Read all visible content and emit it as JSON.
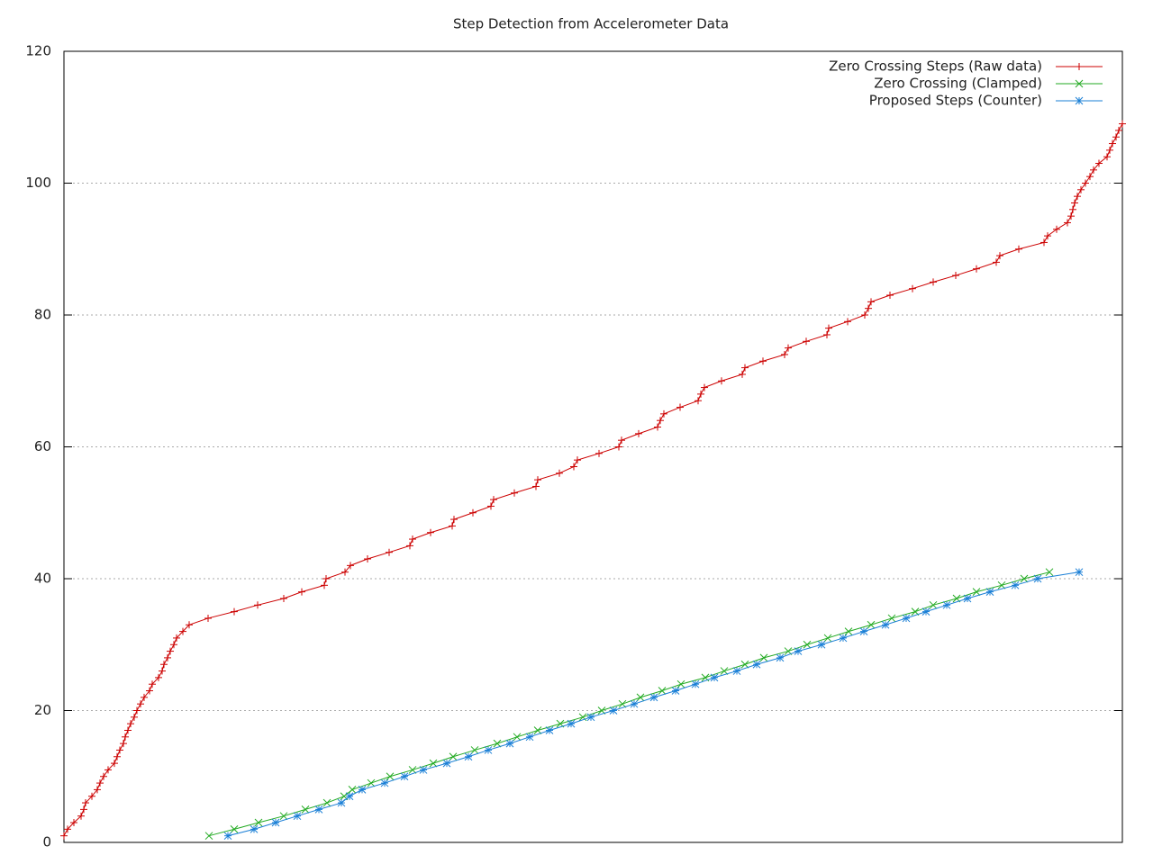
{
  "chart_data": {
    "type": "line",
    "title": "Step Detection from Accelerometer Data",
    "xlim": [
      0,
      1175
    ],
    "ylim": [
      0,
      120
    ],
    "yticks": [
      0,
      20,
      40,
      60,
      80,
      100,
      120
    ],
    "grid": true,
    "legend": "top-right",
    "series": [
      {
        "name": "Zero Crossing Steps (Raw data)",
        "color": "#cc0000",
        "marker": "plus",
        "x": [
          0,
          4,
          11,
          19,
          22,
          24,
          31,
          37,
          40,
          44,
          49,
          56,
          59,
          62,
          66,
          68,
          71,
          74,
          78,
          81,
          85,
          89,
          95,
          98,
          105,
          109,
          111,
          115,
          118,
          122,
          125,
          132,
          139,
          160,
          189,
          215,
          244,
          264,
          289,
          291,
          312,
          318,
          337,
          361,
          384,
          387,
          407,
          431,
          433,
          454,
          474,
          477,
          500,
          524,
          526,
          550,
          566,
          570,
          594,
          616,
          619,
          638,
          659,
          662,
          666,
          684,
          704,
          707,
          711,
          730,
          753,
          756,
          776,
          800,
          804,
          824,
          847,
          849,
          870,
          889,
          893,
          896,
          917,
          942,
          965,
          990,
          1013,
          1035,
          1039,
          1060,
          1088,
          1092,
          1102,
          1114,
          1118,
          1120,
          1122,
          1125,
          1129,
          1134,
          1139,
          1143,
          1149,
          1158,
          1161,
          1164,
          1168,
          1171,
          1175
        ],
        "values": [
          1,
          2,
          3,
          4,
          5,
          6,
          7,
          8,
          9,
          10,
          11,
          12,
          13,
          14,
          15,
          16,
          17,
          18,
          19,
          20,
          21,
          22,
          23,
          24,
          25,
          26,
          27,
          28,
          29,
          30,
          31,
          32,
          33,
          34,
          35,
          36,
          37,
          38,
          39,
          40,
          41,
          42,
          43,
          44,
          45,
          46,
          47,
          48,
          49,
          50,
          51,
          52,
          53,
          54,
          55,
          56,
          57,
          58,
          59,
          60,
          61,
          62,
          63,
          64,
          65,
          66,
          67,
          68,
          69,
          70,
          71,
          72,
          73,
          74,
          75,
          76,
          77,
          78,
          79,
          80,
          81,
          82,
          83,
          84,
          85,
          86,
          87,
          88,
          89,
          90,
          91,
          92,
          93,
          94,
          95,
          96,
          97,
          98,
          99,
          100,
          101,
          102,
          103,
          104,
          105,
          106,
          107,
          108,
          109
        ]
      },
      {
        "name": "Zero Crossing (Clamped)",
        "color": "#22aa22",
        "marker": "cross",
        "x": [
          161,
          189,
          216,
          244,
          268,
          292,
          311,
          320,
          341,
          362,
          387,
          410,
          432,
          456,
          481,
          503,
          526,
          551,
          576,
          597,
          620,
          640,
          664,
          685,
          712,
          733,
          756,
          777,
          804,
          825,
          848,
          871,
          896,
          919,
          945,
          965,
          991,
          1013,
          1041,
          1066,
          1094
        ],
        "values": [
          1,
          2,
          3,
          4,
          5,
          6,
          7,
          8,
          9,
          10,
          11,
          12,
          13,
          14,
          15,
          16,
          17,
          18,
          19,
          20,
          21,
          22,
          23,
          24,
          25,
          26,
          27,
          28,
          29,
          30,
          31,
          32,
          33,
          34,
          35,
          36,
          37,
          38,
          39,
          40,
          41
        ]
      },
      {
        "name": "Proposed Steps (Counter)",
        "color": "#1a7fd6",
        "marker": "star",
        "x": [
          182,
          211,
          235,
          259,
          283,
          308,
          317,
          331,
          356,
          378,
          399,
          425,
          449,
          471,
          495,
          517,
          539,
          563,
          585,
          610,
          633,
          655,
          679,
          701,
          722,
          747,
          769,
          795,
          815,
          841,
          865,
          888,
          912,
          935,
          957,
          980,
          1003,
          1028,
          1056,
          1081,
          1127
        ],
        "values": [
          1,
          2,
          3,
          4,
          5,
          6,
          7,
          8,
          9,
          10,
          11,
          12,
          13,
          14,
          15,
          16,
          17,
          18,
          19,
          20,
          21,
          22,
          23,
          24,
          25,
          26,
          27,
          28,
          29,
          30,
          31,
          32,
          33,
          34,
          35,
          36,
          37,
          38,
          39,
          40,
          41
        ]
      }
    ]
  }
}
